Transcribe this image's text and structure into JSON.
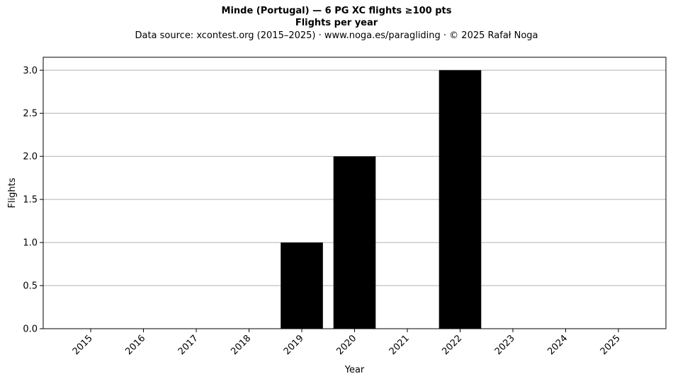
{
  "chart_data": {
    "type": "bar",
    "title": "Minde (Portugal)  —  6 PG XC flights ≥100 pts",
    "subtitle": "Flights per year",
    "source_line": "Data source: xcontest.org (2015–2025)  ·  www.noga.es/paragliding  ·  © 2025 Rafał Noga",
    "xlabel": "Year",
    "ylabel": "Flights",
    "categories": [
      "2015",
      "2016",
      "2017",
      "2018",
      "2019",
      "2020",
      "2021",
      "2022",
      "2023",
      "2024",
      "2025"
    ],
    "values": [
      0,
      0,
      0,
      0,
      1,
      2,
      0,
      3,
      0,
      0,
      0
    ],
    "ylim": [
      0,
      3.15
    ],
    "yticks": [
      "0.0",
      "0.5",
      "1.0",
      "1.5",
      "2.0",
      "2.5",
      "3.0"
    ],
    "grid": "horizontal",
    "bar_color": "#000000",
    "grid_color": "#b0b0b0"
  }
}
